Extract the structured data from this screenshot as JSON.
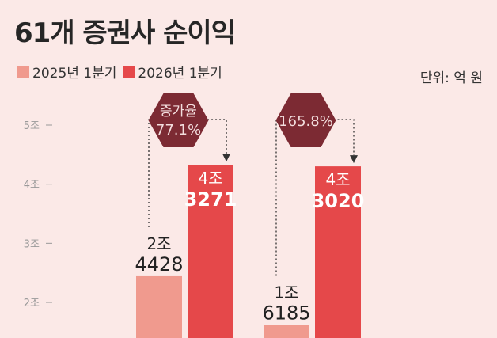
{
  "title": "61개 증권사 순이익",
  "unit": "단위: 억 원",
  "colors": {
    "s2025": "#f09a8e",
    "s2026": "#e5484a",
    "badge": "#7c2a33",
    "badge_text": "#f3dede"
  },
  "chart_data": {
    "type": "bar",
    "categories": [
      "",
      ""
    ],
    "series": [
      {
        "name": "2025년 1분기",
        "values": [
          24428,
          16185
        ],
        "labels": [
          [
            "2조",
            "4428"
          ],
          [
            "1조",
            "6185"
          ]
        ]
      },
      {
        "name": "2026년 1분기",
        "values": [
          43271,
          43020
        ],
        "labels": [
          [
            "4조",
            "3271"
          ],
          [
            "4조",
            "3020"
          ]
        ]
      }
    ],
    "yticks": [
      {
        "v": 50000,
        "label": "5조"
      },
      {
        "v": 40000,
        "label": "4조"
      },
      {
        "v": 30000,
        "label": "3조"
      },
      {
        "v": 20000,
        "label": "2조"
      }
    ],
    "annotations": [
      {
        "lines": [
          "증가율",
          "77.1%"
        ]
      },
      {
        "lines": [
          "165.8%"
        ]
      }
    ]
  }
}
